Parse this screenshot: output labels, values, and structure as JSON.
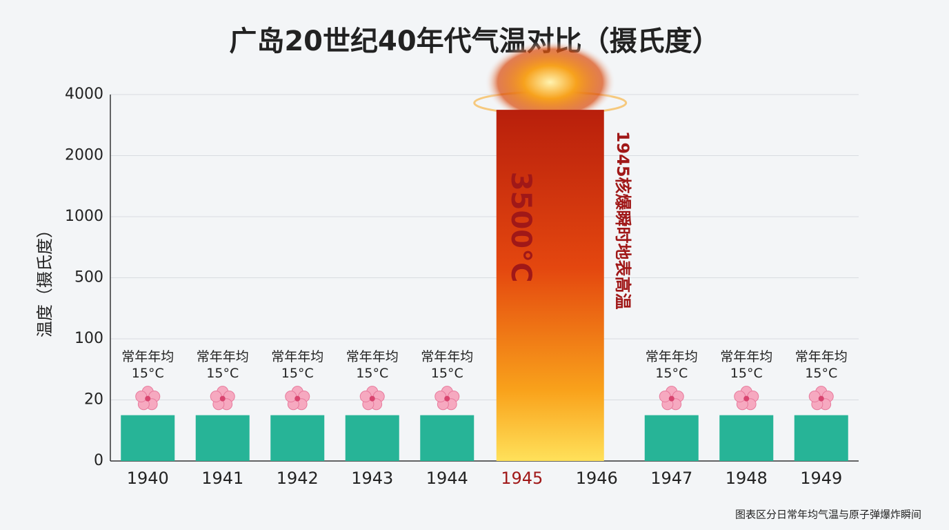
{
  "chart_data": {
    "type": "bar",
    "title": "广岛20世纪40年代气温对比（摄氏度）",
    "y_label": "温度（摄氏度）",
    "categories": [
      "1940",
      "1941",
      "1942",
      "1943",
      "1944",
      "1945",
      "1946",
      "1947",
      "1948",
      "1949"
    ],
    "values": [
      15,
      15,
      15,
      15,
      15,
      3500,
      null,
      15,
      15,
      15
    ],
    "value_labels": [
      "15°C",
      "15°C",
      "15°C",
      "15°C",
      "15°C",
      "3500°C",
      null,
      "15°C",
      "15°C",
      "15°C"
    ],
    "value_notes": [
      "常年年均",
      "常年年均",
      "常年年均",
      "常年年均",
      "常年年均",
      null,
      null,
      "常年年均",
      "常年年均",
      "常年年均"
    ],
    "color": "#27b497",
    "highlight_index": 5,
    "highlight_color": "#a01818",
    "annotation": "1945核爆瞬时地表高温",
    "source": "图表区分日常年均气温与原子弹爆炸瞬间",
    "ylim": [
      0,
      4000
    ],
    "yticks": [
      0,
      20,
      100,
      500,
      1000,
      2000,
      4000
    ],
    "scale": "piecewise",
    "grid": true
  }
}
